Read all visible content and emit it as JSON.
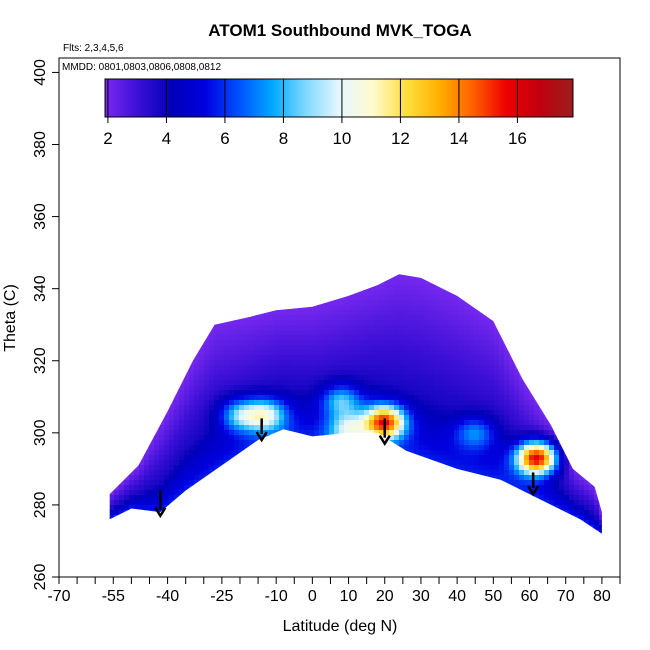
{
  "chart_data": {
    "type": "heatmap",
    "title": "ATOM1 Southbound MVK_TOGA",
    "flights_note": "Flts: 2,3,4,5,6",
    "dates_note": "MMDD: 0801,0803,0806,0808,0812",
    "xlabel": "Latitude (deg N)",
    "ylabel": "Theta (C)",
    "xlim": [
      -70,
      85
    ],
    "ylim": [
      260,
      404
    ],
    "x_ticks_labeled": [
      "-70",
      "-55",
      "-40",
      "-25",
      "-10",
      "0",
      "10",
      "20",
      "30",
      "40",
      "50",
      "60",
      "70",
      "80"
    ],
    "x_tick_values_labeled": [
      -70,
      -55,
      -40,
      -25,
      -10,
      0,
      10,
      20,
      30,
      40,
      50,
      60,
      70,
      80
    ],
    "x_ticks_minor": [
      -65,
      -60,
      -50,
      -45,
      -35,
      -30,
      -20,
      -15,
      -5,
      5,
      15,
      25,
      35,
      45,
      55,
      65,
      75,
      85
    ],
    "y_ticks": [
      "260",
      "280",
      "300",
      "320",
      "340",
      "360",
      "380",
      "400"
    ],
    "y_tick_values": [
      260,
      280,
      300,
      320,
      340,
      360,
      380,
      400
    ],
    "colorbar": {
      "labels": [
        "2",
        "4",
        "6",
        "8",
        "10",
        "12",
        "14",
        "16"
      ],
      "values": [
        2,
        4,
        6,
        8,
        10,
        12,
        14,
        16
      ],
      "min": 1.9,
      "max": 17.9,
      "colors": [
        "#7a2af0",
        "#3b0fd6",
        "#0000b8",
        "#0000e0",
        "#0050ff",
        "#00a8ff",
        "#7fd8ff",
        "#e6f7ff",
        "#fffbd0",
        "#ffe040",
        "#ffb000",
        "#ff6000",
        "#ee0000",
        "#c00010",
        "#9b1e1e"
      ]
    },
    "domain_envelope": {
      "top": [
        [
          -56,
          283
        ],
        [
          -48,
          291
        ],
        [
          -40,
          306
        ],
        [
          -33,
          320
        ],
        [
          -27,
          330
        ],
        [
          -18,
          332
        ],
        [
          -10,
          334
        ],
        [
          0,
          335
        ],
        [
          10,
          338
        ],
        [
          18,
          341
        ],
        [
          24,
          344
        ],
        [
          30,
          343
        ],
        [
          40,
          338
        ],
        [
          50,
          331
        ],
        [
          58,
          315
        ],
        [
          66,
          302
        ],
        [
          72,
          290
        ],
        [
          78,
          285
        ],
        [
          80,
          278
        ]
      ],
      "bottom": [
        [
          -56,
          276
        ],
        [
          -50,
          279
        ],
        [
          -42,
          278
        ],
        [
          -35,
          284
        ],
        [
          -25,
          291
        ],
        [
          -15,
          298
        ],
        [
          -8,
          301
        ],
        [
          0,
          299
        ],
        [
          10,
          300
        ],
        [
          18,
          300
        ],
        [
          26,
          295
        ],
        [
          40,
          290
        ],
        [
          52,
          287
        ],
        [
          60,
          283
        ],
        [
          68,
          279
        ],
        [
          74,
          276
        ],
        [
          80,
          272
        ]
      ]
    },
    "hotspots": [
      {
        "lat": 20,
        "theta": 303,
        "value": 14.5
      },
      {
        "lat": 62,
        "theta": 293,
        "value": 16.5
      },
      {
        "lat": -13,
        "theta": 305,
        "value": 9.5
      },
      {
        "lat": 8,
        "theta": 309,
        "value": 8.0
      },
      {
        "lat": -20,
        "theta": 305,
        "value": 8.5
      },
      {
        "lat": 45,
        "theta": 300,
        "value": 7.0
      },
      {
        "lat": 10,
        "theta": 301,
        "value": 8.5
      }
    ],
    "arrows": [
      {
        "lat": -42,
        "theta_top": 284,
        "theta_bottom": 277
      },
      {
        "lat": -14,
        "theta_top": 304,
        "theta_bottom": 298
      },
      {
        "lat": 20,
        "theta_top": 304,
        "theta_bottom": 297
      },
      {
        "lat": 61,
        "theta_top": 289,
        "theta_bottom": 283
      }
    ]
  }
}
